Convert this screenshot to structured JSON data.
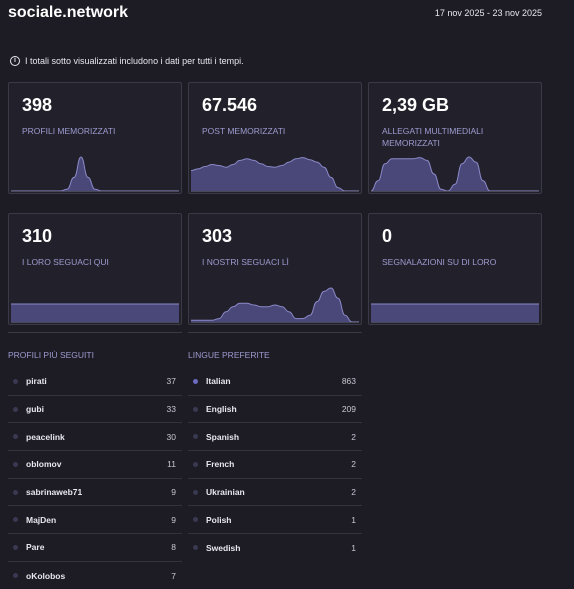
{
  "header": {
    "title": "sociale.network",
    "date_range": "17 nov 2025 - 23 nov 2025"
  },
  "info": {
    "icon": "info-icon",
    "text": "I totali sotto visualizzati includono i dati per tutti i tempi."
  },
  "colors": {
    "background": "#1d1c24",
    "card_bg": "#22212b",
    "accent_fill": "#4a4878",
    "accent_stroke": "#8b89c9",
    "label": "#9d9bd0",
    "dot_active": "#6e6cc2",
    "dot_inactive": "#3a3952"
  },
  "cards": [
    {
      "value": "398",
      "label": "PROFILI MEMORIZZATI",
      "spark": [
        0,
        0,
        0,
        0,
        0,
        0,
        0,
        0,
        0.05,
        0.4,
        1,
        0.4,
        0.05,
        0,
        0,
        0,
        0,
        0,
        0,
        0,
        0,
        0,
        0,
        0,
        0
      ]
    },
    {
      "value": "67.546",
      "label": "POST MEMORIZZATI",
      "spark": [
        0.6,
        0.65,
        0.72,
        0.78,
        0.75,
        0.7,
        0.78,
        0.9,
        0.95,
        0.9,
        0.8,
        0.72,
        0.7,
        0.75,
        0.85,
        0.95,
        0.98,
        0.92,
        0.85,
        0.7,
        0.4,
        0.1,
        0,
        0,
        0
      ]
    },
    {
      "value": "2,39 GB",
      "label": "ALLEGATI MULTIMEDIALI MEMORIZZATI",
      "spark": [
        0,
        0.3,
        0.8,
        0.95,
        0.95,
        0.95,
        0.95,
        0.98,
        0.9,
        0.5,
        0.05,
        0,
        0.2,
        0.8,
        1,
        0.85,
        0.3,
        0,
        0,
        0,
        0,
        0,
        0,
        0,
        0
      ]
    },
    {
      "value": "310",
      "label": "I LORO SEGUACI QUI",
      "spark": [
        1,
        1,
        1,
        1,
        1,
        1,
        1,
        1,
        1,
        1,
        1,
        1,
        1,
        1,
        1,
        1,
        1,
        1,
        1,
        1,
        1,
        1,
        1,
        1,
        1
      ]
    },
    {
      "value": "303",
      "label": "I NOSTRI SEGUACI LÌ",
      "spark": [
        0.05,
        0.05,
        0.05,
        0.05,
        0.1,
        0.3,
        0.45,
        0.55,
        0.55,
        0.5,
        0.45,
        0.45,
        0.5,
        0.45,
        0.3,
        0.1,
        0.1,
        0.2,
        0.6,
        0.9,
        1,
        0.7,
        0.2,
        0,
        0
      ]
    },
    {
      "value": "0",
      "label": "SEGNALAZIONI SU DI LORO",
      "spark": [
        1,
        1,
        1,
        1,
        1,
        1,
        1,
        1,
        1,
        1,
        1,
        1,
        1,
        1,
        1,
        1,
        1,
        1,
        1,
        1,
        1,
        1,
        1,
        1,
        1
      ]
    }
  ],
  "followed": {
    "title": "PROFILI PIÙ SEGUITI",
    "items": [
      {
        "name": "pirati",
        "count": "37",
        "active": false
      },
      {
        "name": "gubi",
        "count": "33",
        "active": false
      },
      {
        "name": "peacelink",
        "count": "30",
        "active": false
      },
      {
        "name": "oblomov",
        "count": "11",
        "active": false
      },
      {
        "name": "sabrinaweb71",
        "count": "9",
        "active": false
      },
      {
        "name": "MajDen",
        "count": "9",
        "active": false
      },
      {
        "name": "Pare",
        "count": "8",
        "active": false
      },
      {
        "name": "oKolobos",
        "count": "7",
        "active": false
      }
    ]
  },
  "languages": {
    "title": "LINGUE PREFERITE",
    "items": [
      {
        "name": "Italian",
        "count": "863",
        "active": true
      },
      {
        "name": "English",
        "count": "209",
        "active": false
      },
      {
        "name": "Spanish",
        "count": "2",
        "active": false
      },
      {
        "name": "French",
        "count": "2",
        "active": false
      },
      {
        "name": "Ukrainian",
        "count": "2",
        "active": false
      },
      {
        "name": "Polish",
        "count": "1",
        "active": false
      },
      {
        "name": "Swedish",
        "count": "1",
        "active": false
      }
    ]
  }
}
